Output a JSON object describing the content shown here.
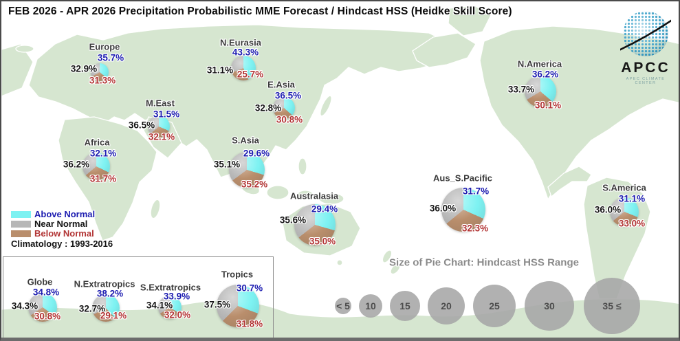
{
  "title": "FEB 2026 - APR 2026 Precipitation Probabilistic MME Forecast / Hindcast HSS (Heidke Skill Score)",
  "logo": {
    "acronym": "APCC",
    "subtitle": "APEC CLIMATE CENTER"
  },
  "legend": {
    "items": [
      {
        "label": "Above Normal",
        "swatch": "#7DF2F2",
        "text_color": "#1C1CB0"
      },
      {
        "label": "Near Normal",
        "swatch": "#B7B7B7",
        "text_color": "#141414"
      },
      {
        "label": "Below Normal",
        "swatch": "#B98E6C",
        "text_color": "#B23434"
      }
    ],
    "climatology": "Climatology : 1993-2016"
  },
  "size_legend": {
    "title": "Size of Pie Chart: Hindcast HSS Range",
    "labels": [
      "< 5",
      "10",
      "15",
      "20",
      "25",
      "30",
      "35 ≤"
    ]
  },
  "chart_data": {
    "type": "pie",
    "description": "Tercile probability pies per region; pie size encodes Hindcast HSS range",
    "series_labels": [
      "Above Normal",
      "Near Normal",
      "Below Normal"
    ],
    "colors": {
      "above": "#7DF2F2",
      "near": "#B7B7B7",
      "below": "#B98E6C"
    },
    "regions": [
      {
        "name": "Europe",
        "group": "map",
        "above": 35.7,
        "near": 32.9,
        "below": 31.3
      },
      {
        "name": "N.Eurasia",
        "group": "map",
        "above": 43.3,
        "near": 31.1,
        "below": 25.7
      },
      {
        "name": "E.Asia",
        "group": "map",
        "above": 36.5,
        "near": 32.8,
        "below": 30.8
      },
      {
        "name": "M.East",
        "group": "map",
        "above": 31.5,
        "near": 36.5,
        "below": 32.1
      },
      {
        "name": "Africa",
        "group": "map",
        "above": 32.1,
        "near": 36.2,
        "below": 31.7
      },
      {
        "name": "S.Asia",
        "group": "map",
        "above": 29.6,
        "near": 35.1,
        "below": 35.2
      },
      {
        "name": "Australasia",
        "group": "map",
        "above": 29.4,
        "near": 35.6,
        "below": 35.0
      },
      {
        "name": "Aus_S.Pacific",
        "group": "map",
        "above": 31.7,
        "near": 36.0,
        "below": 32.3
      },
      {
        "name": "N.America",
        "group": "map",
        "above": 36.2,
        "near": 33.7,
        "below": 30.1
      },
      {
        "name": "S.America",
        "group": "map",
        "above": 31.1,
        "near": 36.0,
        "below": 33.0
      },
      {
        "name": "Globe",
        "group": "summary",
        "above": 34.8,
        "near": 34.3,
        "below": 30.8
      },
      {
        "name": "N.Extratropics",
        "group": "summary",
        "above": 38.2,
        "near": 32.7,
        "below": 29.1
      },
      {
        "name": "S.Extratropics",
        "group": "summary",
        "above": 33.9,
        "near": 34.1,
        "below": 32.0
      },
      {
        "name": "Tropics",
        "group": "summary",
        "above": 30.7,
        "near": 37.5,
        "below": 31.8
      }
    ]
  }
}
